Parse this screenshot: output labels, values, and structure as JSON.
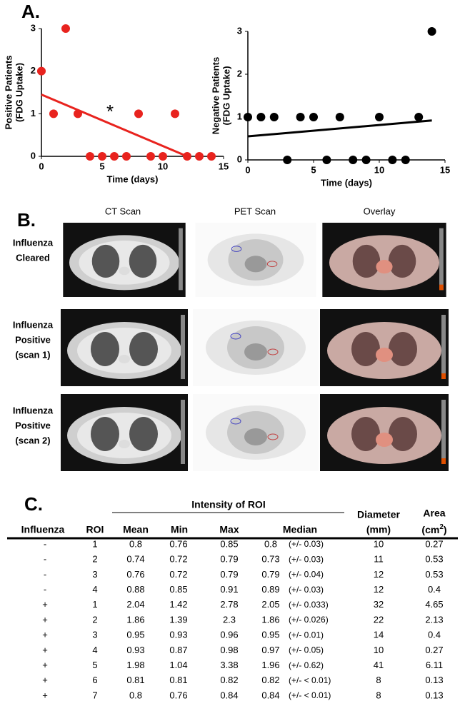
{
  "panel_labels": [
    "A.",
    "B.",
    "C."
  ],
  "chart_data": [
    {
      "type": "scatter",
      "ylabel": [
        "Positive Patients",
        "(FDG Uptake)"
      ],
      "xlabel": "Time (days)",
      "annotation": "*",
      "x": [
        0,
        1,
        2,
        3,
        4,
        5,
        6,
        7,
        8,
        9,
        10,
        11,
        12,
        13,
        14
      ],
      "series": [
        {
          "color": "#e8231e",
          "values": [
            2,
            1,
            3,
            1,
            0,
            0,
            0,
            0,
            1,
            0,
            0,
            1,
            0,
            0,
            0
          ]
        }
      ],
      "trend": {
        "color": "#e8231e",
        "x": [
          0,
          12
        ],
        "values": [
          1.45,
          0
        ]
      },
      "xlim": [
        0,
        15
      ],
      "xticks": [
        0,
        5,
        10,
        15
      ],
      "ylim": [
        0,
        3
      ],
      "yticks": [
        0,
        1,
        2,
        3
      ]
    },
    {
      "type": "scatter",
      "ylabel": [
        "Negative Patients",
        "(FDG Uptake)"
      ],
      "xlabel": "Time (days)",
      "x": [
        0,
        1,
        2,
        3,
        4,
        5,
        6,
        7,
        8,
        9,
        10,
        11,
        12,
        13,
        14
      ],
      "series": [
        {
          "color": "#000000",
          "values": [
            1,
            1,
            1,
            0,
            1,
            1,
            0,
            1,
            0,
            0,
            1,
            0,
            0,
            1,
            3
          ]
        }
      ],
      "trend": {
        "color": "#000000",
        "x": [
          0,
          14
        ],
        "values": [
          0.55,
          0.92
        ]
      },
      "xlim": [
        0,
        15
      ],
      "xticks": [
        0,
        5,
        10,
        15
      ],
      "ylim": [
        0,
        3
      ],
      "yticks": [
        0,
        1,
        2,
        3
      ]
    }
  ],
  "panel_b": {
    "columns": [
      "CT Scan",
      "PET Scan",
      "Overlay"
    ],
    "rows": [
      [
        "Influenza",
        "Cleared"
      ],
      [
        "Influenza",
        "Positive",
        "(scan 1)"
      ],
      [
        "Influenza",
        "Positive",
        "(scan 2)"
      ]
    ]
  },
  "table": {
    "group_header": "Intensity of ROI",
    "headers": [
      "Influenza",
      "ROI",
      "Mean",
      "Min",
      "Max",
      "Median"
    ],
    "diameter": [
      "Diameter",
      "(mm)"
    ],
    "area": {
      "label": "Area",
      "unit": "(cm",
      "sup": "2",
      "close": ")"
    },
    "rows": [
      [
        "-",
        "1",
        "0.8",
        "0.76",
        "0.85",
        "0.8",
        "(+/- 0.03)",
        "10",
        "0.27"
      ],
      [
        "-",
        "2",
        "0.74",
        "0.72",
        "0.79",
        "0.73",
        "(+/- 0.03)",
        "11",
        "0.53"
      ],
      [
        "-",
        "3",
        "0.76",
        "0.72",
        "0.79",
        "0.79",
        "(+/- 0.04)",
        "12",
        "0.53"
      ],
      [
        "-",
        "4",
        "0.88",
        "0.85",
        "0.91",
        "0.89",
        "(+/- 0.03)",
        "12",
        "0.4"
      ],
      [
        "+",
        "1",
        "2.04",
        "1.42",
        "2.78",
        "2.05",
        "(+/- 0.033)",
        "32",
        "4.65"
      ],
      [
        "+",
        "2",
        "1.86",
        "1.39",
        "2.3",
        "1.86",
        "(+/- 0.026)",
        "22",
        "2.13"
      ],
      [
        "+",
        "3",
        "0.95",
        "0.93",
        "0.96",
        "0.95",
        "(+/- 0.01)",
        "14",
        "0.4"
      ],
      [
        "+",
        "4",
        "0.93",
        "0.87",
        "0.98",
        "0.97",
        "(+/- 0.05)",
        "10",
        "0.27"
      ],
      [
        "+",
        "5",
        "1.98",
        "1.04",
        "3.38",
        "1.96",
        "(+/- 0.62)",
        "41",
        "6.11"
      ],
      [
        "+",
        "6",
        "0.81",
        "0.81",
        "0.82",
        "0.82",
        "(+/- < 0.01)",
        "8",
        "0.13"
      ],
      [
        "+",
        "7",
        "0.8",
        "0.76",
        "0.84",
        "0.84",
        "(+/- < 0.01)",
        "8",
        "0.13"
      ]
    ]
  }
}
